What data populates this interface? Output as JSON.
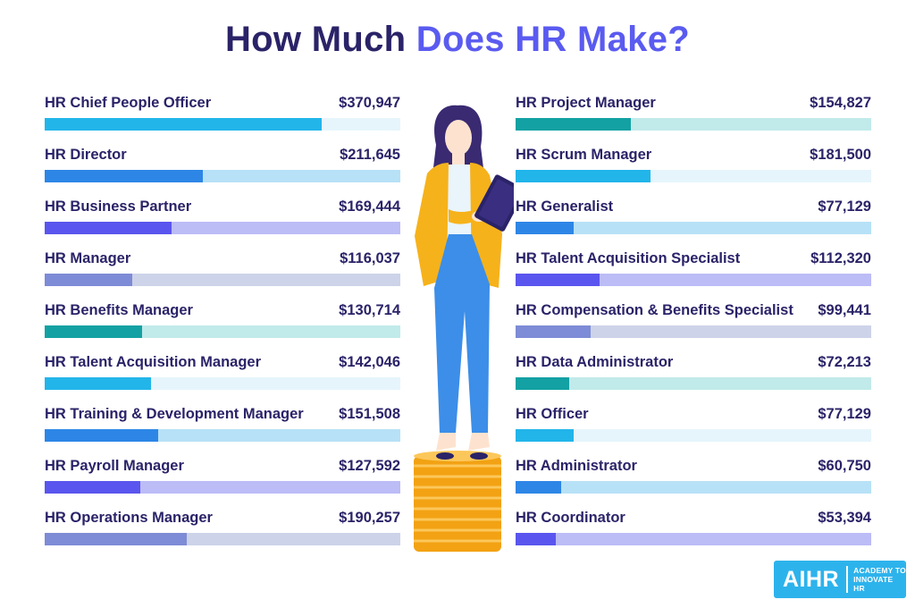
{
  "title": {
    "part1": "How Much ",
    "part2": "Does HR Make?"
  },
  "colors": {
    "title_dark": "#2a2368",
    "title_accent": "#5a5bf0",
    "palettes": [
      {
        "fill": "#22b5ea",
        "track": "#e6f5fc"
      },
      {
        "fill": "#2d86e6",
        "track": "#b7e1f7"
      },
      {
        "fill": "#5a55ee",
        "track": "#bcbcf7"
      },
      {
        "fill": "#7e8bd6",
        "track": "#cdd3e8"
      },
      {
        "fill": "#13a1a3",
        "track": "#c1eaea"
      }
    ]
  },
  "left_roles": [
    {
      "label": "HR Chief People Officer",
      "amount": "$370,947",
      "share": 0.78,
      "palette": 0
    },
    {
      "label": "HR Director",
      "amount": "$211,645",
      "share": 0.445,
      "palette": 1
    },
    {
      "label": "HR Business Partner",
      "amount": "$169,444",
      "share": 0.357,
      "palette": 2
    },
    {
      "label": "HR Manager",
      "amount": "$116,037",
      "share": 0.245,
      "palette": 3
    },
    {
      "label": "HR Benefits Manager",
      "amount": "$130,714",
      "share": 0.275,
      "palette": 4
    },
    {
      "label": "HR Talent Acquisition Manager",
      "amount": "$142,046",
      "share": 0.3,
      "palette": 0
    },
    {
      "label": "HR Training & Development Manager",
      "amount": "$151,508",
      "share": 0.32,
      "palette": 1
    },
    {
      "label": "HR Payroll Manager",
      "amount": "$127,592",
      "share": 0.27,
      "palette": 2
    },
    {
      "label": "HR Operations Manager",
      "amount": "$190,257",
      "share": 0.4,
      "palette": 3
    }
  ],
  "right_roles": [
    {
      "label": "HR Project Manager",
      "amount": "$154,827",
      "share": 0.325,
      "palette": 4
    },
    {
      "label": "HR Scrum Manager",
      "amount": "$181,500",
      "share": 0.38,
      "palette": 0
    },
    {
      "label": "HR Generalist",
      "amount": "$77,129",
      "share": 0.163,
      "palette": 1
    },
    {
      "label": "HR Talent Acquisition Specialist",
      "amount": "$112,320",
      "share": 0.236,
      "palette": 2
    },
    {
      "label": "HR Compensation & Benefits Specialist",
      "amount": "$99,441",
      "share": 0.21,
      "palette": 3
    },
    {
      "label": "HR Data Administrator",
      "amount": "$72,213",
      "share": 0.152,
      "palette": 4
    },
    {
      "label": "HR Officer",
      "amount": "$77,129",
      "share": 0.163,
      "palette": 0
    },
    {
      "label": "HR Administrator",
      "amount": "$60,750",
      "share": 0.128,
      "palette": 1
    },
    {
      "label": "HR Coordinator",
      "amount": "$53,394",
      "share": 0.113,
      "palette": 2
    }
  ],
  "logo": {
    "mark": "AIHR",
    "tag_line1": "ACADEMY TO",
    "tag_line2": "INNOVATE HR"
  }
}
